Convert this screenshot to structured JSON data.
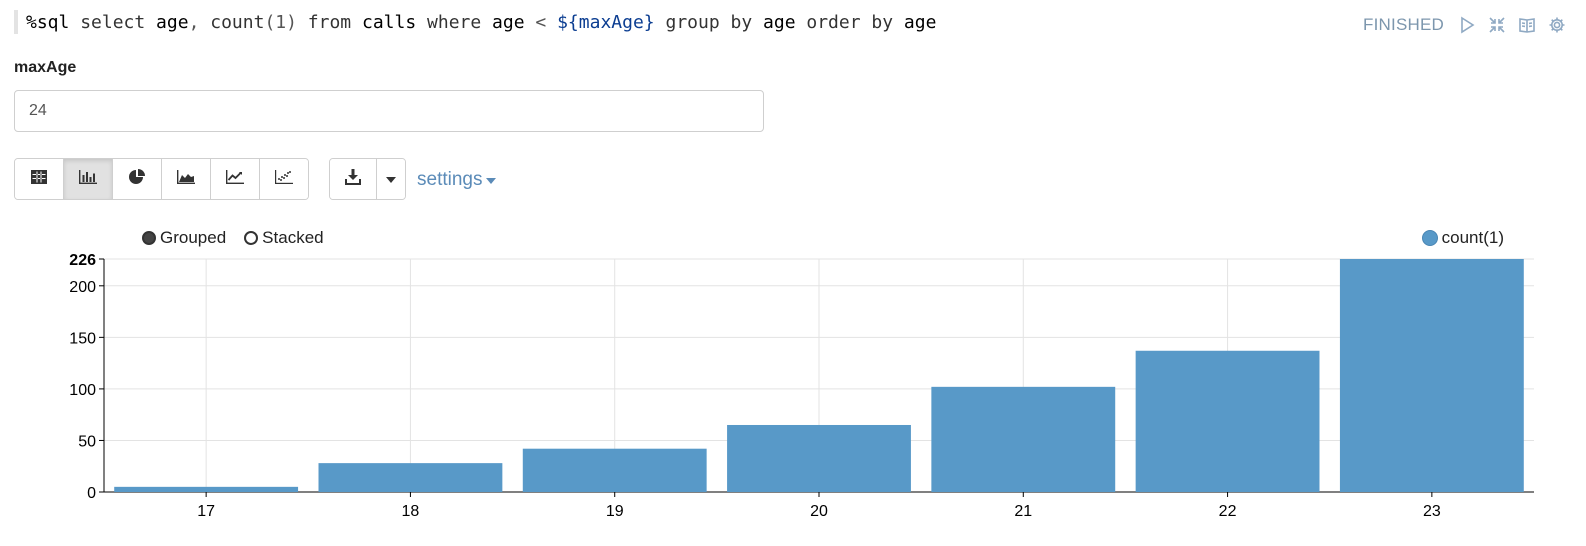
{
  "paragraph": {
    "code_tokens": [
      {
        "t": "%sql ",
        "c": "id"
      },
      {
        "t": "select ",
        "c": "kw"
      },
      {
        "t": "age",
        "c": "id"
      },
      {
        "t": ", ",
        "c": "op"
      },
      {
        "t": "count",
        "c": "kw"
      },
      {
        "t": "(1) ",
        "c": "op"
      },
      {
        "t": "from ",
        "c": "kw"
      },
      {
        "t": "calls ",
        "c": "id"
      },
      {
        "t": "where ",
        "c": "kw"
      },
      {
        "t": "age ",
        "c": "id"
      },
      {
        "t": "< ",
        "c": "op"
      },
      {
        "t": "${maxAge}",
        "c": "str"
      },
      {
        "t": " group by ",
        "c": "kw"
      },
      {
        "t": "age ",
        "c": "id"
      },
      {
        "t": "order by ",
        "c": "kw"
      },
      {
        "t": "age",
        "c": "id"
      }
    ],
    "status": "FINISHED",
    "icons": [
      "run-icon",
      "collapse-icon",
      "book-icon",
      "gear-icon"
    ]
  },
  "param": {
    "label": "maxAge",
    "value": "24"
  },
  "toolbar": {
    "vis_buttons": [
      {
        "icon": "table-icon",
        "active": false
      },
      {
        "icon": "bar-chart-icon",
        "active": true
      },
      {
        "icon": "pie-chart-icon",
        "active": false
      },
      {
        "icon": "area-chart-icon",
        "active": false
      },
      {
        "icon": "line-chart-icon",
        "active": false
      },
      {
        "icon": "scatter-chart-icon",
        "active": false
      }
    ],
    "download_icon": "download-icon",
    "settings_label": "settings"
  },
  "legend": {
    "grouped_label": "Grouped",
    "stacked_label": "Stacked",
    "series_label": "count(1)"
  },
  "colors": {
    "bar": "#5899c8",
    "accent": "#5b8bb8"
  },
  "chart_data": {
    "type": "bar",
    "categories": [
      "17",
      "18",
      "19",
      "20",
      "21",
      "22",
      "23"
    ],
    "series": [
      {
        "name": "count(1)",
        "values": [
          5,
          28,
          42,
          65,
          102,
          137,
          226
        ]
      }
    ],
    "ylim": [
      0,
      226
    ],
    "yticks": [
      0,
      50,
      100,
      150,
      200,
      226
    ],
    "grid": true,
    "legend": "top-right"
  }
}
